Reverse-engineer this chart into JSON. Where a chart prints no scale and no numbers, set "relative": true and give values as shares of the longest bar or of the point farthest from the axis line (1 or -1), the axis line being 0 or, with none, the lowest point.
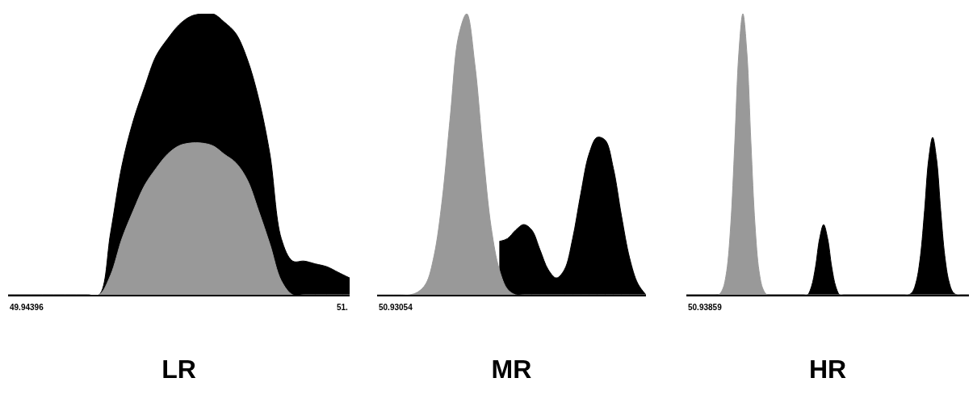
{
  "chart_data": [
    {
      "type": "area",
      "relative": true,
      "xlabel": "LR",
      "annotations": [
        "49.94396",
        "51."
      ],
      "categories": [
        null,
        null,
        null,
        null,
        null,
        null,
        null,
        null,
        null,
        null,
        null,
        null,
        null,
        null,
        null,
        null,
        null,
        null,
        null,
        null,
        null,
        null,
        null,
        null,
        null,
        null,
        null,
        null,
        null,
        null,
        null
      ],
      "series": [
        {
          "color": "#000000",
          "values": [
            0,
            0,
            0,
            0,
            0,
            0,
            0,
            0,
            0,
            0.22,
            0.46,
            0.62,
            0.74,
            0.85,
            0.91,
            0.96,
            0.99,
            1,
            1,
            0.97,
            0.93,
            0.84,
            0.7,
            0.5,
            0.2,
            0.12,
            0.12,
            0.11,
            0.1,
            0.08,
            0.06
          ]
        },
        {
          "color": "#999999",
          "values": [
            0,
            0,
            0,
            0,
            0,
            0,
            0,
            0,
            0,
            0.07,
            0.2,
            0.3,
            0.39,
            0.45,
            0.5,
            0.53,
            0.54,
            0.54,
            0.53,
            0.5,
            0.47,
            0.41,
            0.3,
            0.18,
            0.05,
            0,
            0,
            0,
            0,
            0,
            0
          ]
        }
      ]
    },
    {
      "type": "area",
      "relative": true,
      "xlabel": "MR",
      "annotations": [
        "50.93054"
      ],
      "categories": [
        null,
        null,
        null,
        null,
        null,
        null,
        null,
        null,
        null,
        null,
        null,
        null,
        null,
        null,
        null,
        null,
        null,
        null,
        null,
        null,
        null,
        null,
        null,
        null,
        null,
        null,
        null,
        null,
        null,
        null,
        null,
        null,
        null,
        null
      ],
      "series": [
        {
          "color": "#000000",
          "values": [
            null,
            null,
            null,
            null,
            null,
            null,
            null,
            null,
            null,
            null,
            null,
            null,
            null,
            null,
            null,
            0.19,
            0.2,
            0.23,
            0.25,
            0.23,
            0.16,
            0.09,
            0.06,
            0.09,
            0.2,
            0.36,
            0.5,
            0.56,
            0.55,
            0.45,
            0.28,
            0.13,
            0.04,
            0
          ]
        },
        {
          "color": "#999999",
          "values": [
            0,
            0,
            0,
            0,
            0,
            0.01,
            0.04,
            0.14,
            0.34,
            0.64,
            0.92,
            1,
            0.82,
            0.51,
            0.24,
            0.09,
            0.02,
            0,
            0,
            0,
            0,
            0,
            0,
            0,
            0,
            0,
            0,
            0,
            0,
            0,
            0,
            0,
            0,
            0
          ]
        }
      ]
    },
    {
      "type": "area",
      "relative": true,
      "xlabel": "HR",
      "annotations": [
        "50.93859"
      ],
      "categories": [
        null,
        null,
        null,
        null,
        null,
        null,
        null,
        null,
        null,
        null,
        null,
        null,
        null,
        null,
        null,
        null,
        null,
        null,
        null,
        null,
        null,
        null,
        null,
        null,
        null,
        null,
        null,
        null,
        null,
        null,
        null,
        null,
        null,
        null,
        null,
        null,
        null,
        null,
        null,
        null,
        null,
        null,
        null,
        null,
        null,
        null,
        null,
        null,
        null,
        null,
        null,
        null,
        null,
        null,
        null,
        null,
        null,
        null,
        null,
        null,
        null,
        null,
        null,
        null,
        null,
        null,
        null,
        null,
        null,
        null,
        null
      ],
      "series": [
        {
          "color": "#000000",
          "values": [
            0,
            0,
            0,
            0,
            0,
            0,
            0,
            0,
            0,
            0,
            0,
            0,
            0,
            0,
            0,
            0,
            0,
            0,
            0,
            0,
            0,
            0,
            0,
            0,
            0,
            0,
            0,
            0,
            0,
            0,
            0,
            0.03,
            0.1,
            0.2,
            0.25,
            0.2,
            0.1,
            0.03,
            0,
            0,
            0,
            0,
            0,
            0,
            0,
            0,
            0,
            0,
            0,
            0,
            0,
            0,
            0,
            0,
            0,
            0,
            0.01,
            0.05,
            0.14,
            0.3,
            0.48,
            0.56,
            0.48,
            0.3,
            0.14,
            0.05,
            0.01,
            0,
            0,
            0,
            0
          ]
        },
        {
          "color": "#999999",
          "values": [
            0,
            0,
            0,
            0,
            0,
            0,
            0,
            0,
            0,
            0.02,
            0.085,
            0.25,
            0.54,
            0.86,
            1,
            0.86,
            0.54,
            0.25,
            0.085,
            0.02,
            0,
            0,
            0,
            0,
            0,
            0,
            0,
            0,
            0,
            0,
            0,
            0,
            0,
            0,
            0,
            0,
            0,
            0,
            0,
            0,
            0,
            0,
            0,
            0,
            0,
            0,
            0,
            0,
            0,
            0,
            0,
            0,
            0,
            0,
            0,
            0,
            0,
            0,
            0,
            0,
            0,
            0,
            0,
            0,
            0,
            0,
            0,
            0,
            0,
            0,
            0
          ]
        }
      ]
    }
  ]
}
